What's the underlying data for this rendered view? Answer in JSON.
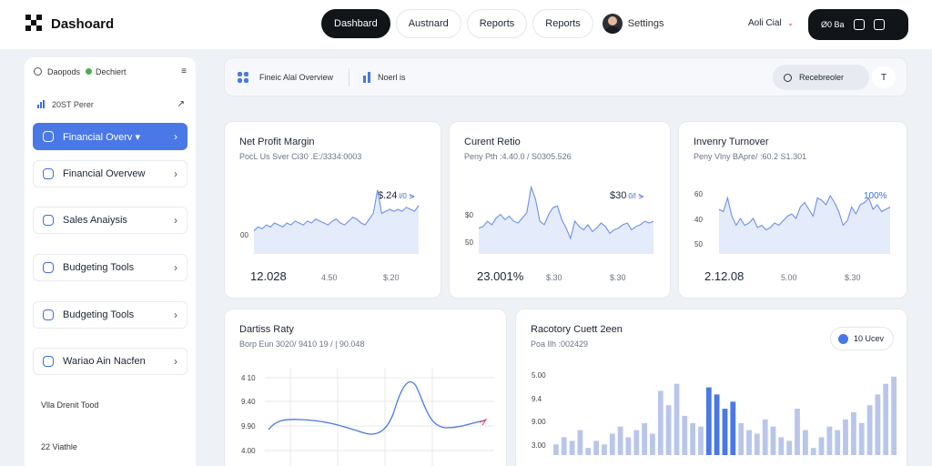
{
  "app": {
    "title": "Dashoard"
  },
  "nav": {
    "tabs": [
      {
        "label": "Dashbard",
        "active": true
      },
      {
        "label": "Austnard"
      },
      {
        "label": "Reports"
      },
      {
        "label": "Reports"
      }
    ],
    "user_label": "Settings"
  },
  "account": {
    "name": "Aoli Cial",
    "box_label": "Ø0 Ba"
  },
  "sidebar": {
    "top": {
      "left": "Daopods",
      "right": "Dechiert"
    },
    "sub": "20ST Perer",
    "items": [
      {
        "label": "Financial Overv ▾",
        "active": true,
        "icon": "chart-icon"
      },
      {
        "label": "Financial Overvew",
        "icon": "document-icon"
      },
      {
        "label": "Sales Anaiysis",
        "icon": "sales-icon"
      },
      {
        "label": "Budgeting Tools",
        "icon": "budget-icon"
      },
      {
        "label": "Budgeting Tools",
        "icon": "user-icon"
      },
      {
        "label": "Wariao Ain Nacfen",
        "icon": "file-icon"
      }
    ],
    "footer": [
      "Vlla Drenit Tood",
      "22 Viathle"
    ]
  },
  "filterbar": {
    "overview": "Fineic Alal Overview",
    "kpis": "Noerl is",
    "search": "Recebreoler",
    "filter": "T"
  },
  "cards": {
    "net_profit": {
      "title": "Net Profit Margin",
      "subtitle": "PocL Us Sver Ci30 .E:/3334:0003",
      "highlight": "$.24",
      "highlight_small": "l/0 ⋟",
      "ylabel": "00",
      "foot_value": "12.028",
      "foot_a": "4.50",
      "foot_b": "$.20",
      "series": [
        20,
        22,
        21,
        23,
        22,
        24,
        23,
        22,
        24,
        23,
        25,
        24,
        23,
        25,
        24,
        26,
        25,
        24,
        23,
        25,
        26,
        24,
        23,
        25,
        27,
        26,
        24,
        23,
        26,
        29,
        41,
        29,
        30,
        31,
        30,
        31,
        30,
        32,
        31,
        30,
        33
      ]
    },
    "current_ratio": {
      "title": "Curent Retio",
      "subtitle": "Peny Pth :4.40.0 / S0305.526",
      "highlight": "$30",
      "highlight_small": "0/l ⋟",
      "ylabels": [
        "$0",
        "50"
      ],
      "foot_value": "23.001%",
      "foot_a": "$.30",
      "foot_b": "$.30",
      "series": [
        28,
        29,
        32,
        30,
        34,
        36,
        33,
        35,
        32,
        31,
        34,
        37,
        52,
        45,
        32,
        30,
        36,
        40,
        41,
        33,
        28,
        22,
        32,
        29,
        27,
        30,
        26,
        28,
        31,
        29,
        25,
        27,
        28,
        30,
        31,
        27,
        29,
        30,
        32,
        31,
        32
      ]
    },
    "inventory": {
      "title": "Invenry Turnover",
      "subtitle": "Peny Vlny BApre/ :60.2 S1.301",
      "highlight": "100%",
      "ylabels": [
        "60",
        "40",
        "50"
      ],
      "foot_value": "2.12.08",
      "foot_a": "5.00",
      "foot_b": "$.30",
      "series": [
        33,
        32,
        38,
        30,
        26,
        29,
        26,
        27,
        29,
        25,
        26,
        24,
        25,
        27,
        26,
        28,
        30,
        31,
        29,
        34,
        36,
        33,
        30,
        38,
        37,
        35,
        39,
        36,
        32,
        26,
        28,
        34,
        31,
        35,
        36,
        38,
        33,
        35,
        32,
        33,
        34
      ]
    },
    "debt": {
      "title": "Dartiss Raty",
      "subtitle": "Borp Eun 3020/ 9410 19 / | 90.048",
      "ylabels": [
        "4 10",
        "9.40",
        "9.90",
        "4.00"
      ]
    },
    "recovery": {
      "title": "Racotory Cuett 2een",
      "subtitle": "Poa Ilh :002429",
      "chip": "10 Ucev",
      "ylabels": [
        "5.00",
        "9.4",
        "9.00",
        "3.00"
      ],
      "bars": [
        3,
        5,
        4,
        7,
        2,
        4,
        3,
        6,
        8,
        5,
        7,
        9,
        6,
        18,
        14,
        20,
        11,
        9,
        8,
        19,
        17,
        13,
        15,
        9,
        7,
        6,
        10,
        8,
        5,
        4,
        13,
        7,
        2,
        5,
        8,
        7,
        10,
        12,
        9,
        14,
        17,
        20,
        22
      ]
    }
  }
}
